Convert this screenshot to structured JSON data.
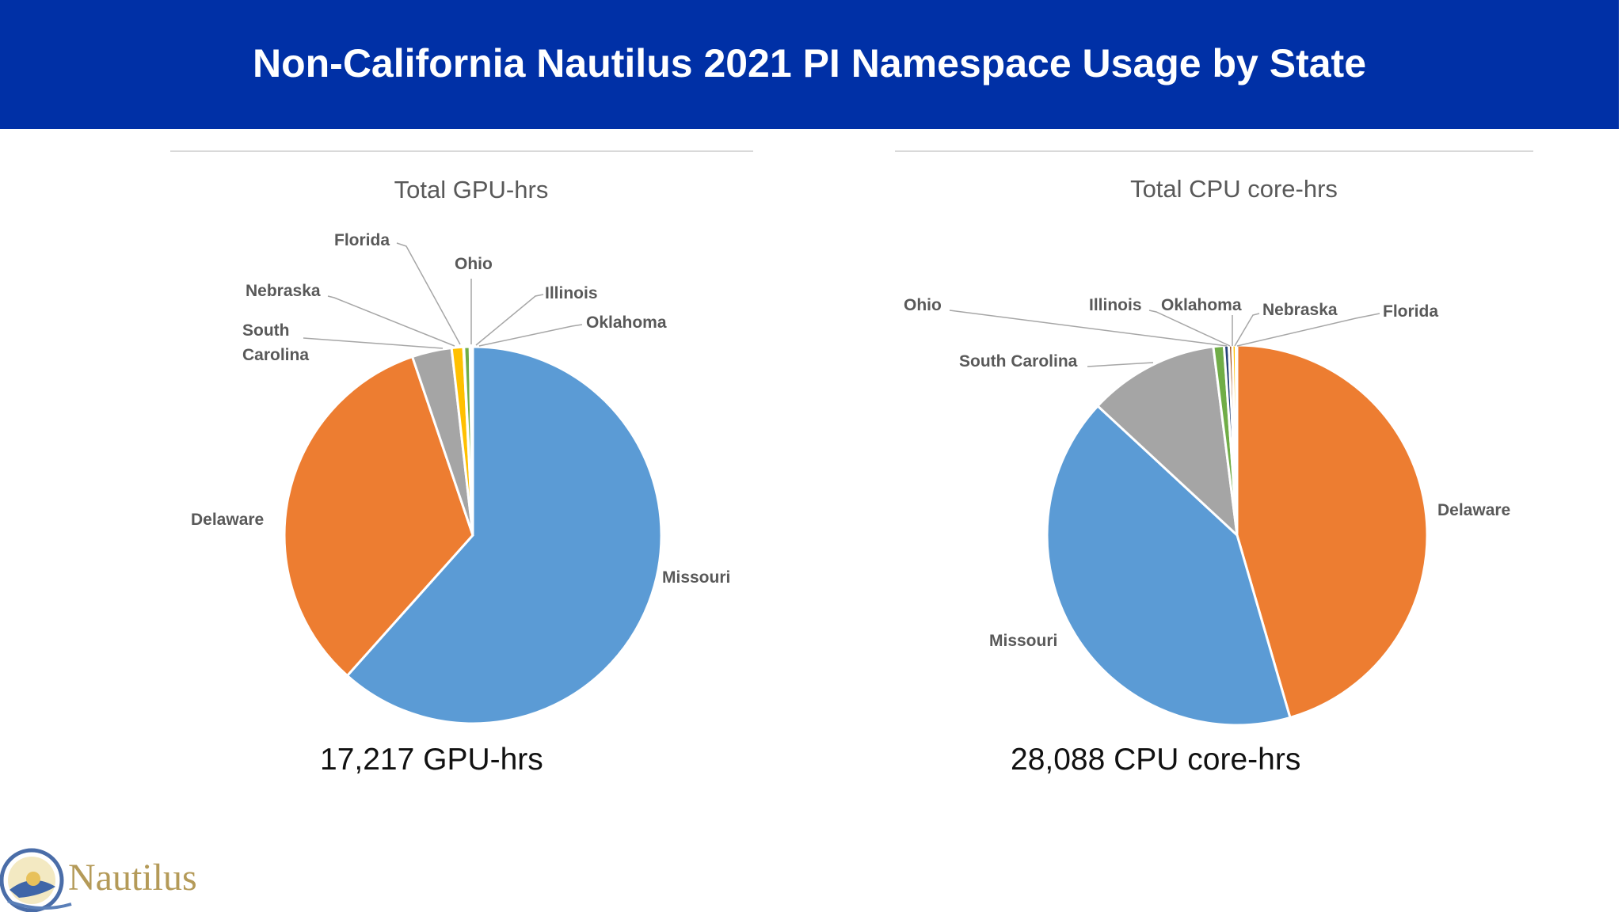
{
  "slide": {
    "title": "Non-California Nautilus 2021 PI Namespace Usage by State",
    "header_color": "#0030a6",
    "gpu_total_label": "17,217 GPU-hrs",
    "cpu_total_label": "28,088 CPU core-hrs",
    "logo_text": "Nautilus"
  },
  "chart_data": [
    {
      "type": "pie",
      "title": "Total GPU-hrs",
      "unit": "GPU-hrs",
      "total": 17217,
      "slices": [
        {
          "label": "Missouri",
          "percent": 61.6,
          "color": "#5b9bd5"
        },
        {
          "label": "Delaware",
          "percent": 33.2,
          "color": "#ed7d31"
        },
        {
          "label": "South Carolina",
          "percent": 3.4,
          "color": "#a5a5a5"
        },
        {
          "label": "Nebraska",
          "percent": 1.0,
          "color": "#ffc000"
        },
        {
          "label": "Florida",
          "percent": 0.05,
          "color": "#4472c4"
        },
        {
          "label": "Ohio",
          "percent": 0.5,
          "color": "#70ad47"
        },
        {
          "label": "Illinois",
          "percent": 0.2,
          "color": "#264478"
        },
        {
          "label": "Oklahoma",
          "percent": 0.05,
          "color": "#9e480e"
        }
      ]
    },
    {
      "type": "pie",
      "title": "Total CPU core-hrs",
      "unit": "CPU core-hrs",
      "total": 28088,
      "slices": [
        {
          "label": "Delaware",
          "percent": 45.5,
          "color": "#ed7d31"
        },
        {
          "label": "Missouri",
          "percent": 41.4,
          "color": "#5b9bd5"
        },
        {
          "label": "South Carolina",
          "percent": 11.1,
          "color": "#a5a5a5"
        },
        {
          "label": "Ohio",
          "percent": 0.9,
          "color": "#70ad47"
        },
        {
          "label": "Illinois",
          "percent": 0.4,
          "color": "#264478"
        },
        {
          "label": "Oklahoma",
          "percent": 0.3,
          "color": "#9e480e"
        },
        {
          "label": "Nebraska",
          "percent": 0.3,
          "color": "#ffc000"
        },
        {
          "label": "Florida",
          "percent": 0.1,
          "color": "#4472c4"
        }
      ]
    }
  ]
}
